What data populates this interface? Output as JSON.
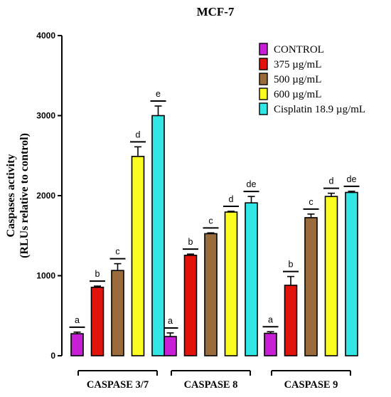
{
  "chart_data": {
    "type": "bar",
    "title": "MCF-7",
    "ylabel_line1": "Caspases activity",
    "ylabel_line2": "(RLUs relative to control)",
    "xlabel": "",
    "ylim": [
      0,
      4000
    ],
    "yticks": [
      0,
      1000,
      2000,
      3000,
      4000
    ],
    "grid": false,
    "legend_position": "top-right",
    "categories": [
      "CASPASE 3/7",
      "CASPASE 8",
      "CASPASE 9"
    ],
    "series": [
      {
        "name": "CONTROL",
        "color": "#c71fd6",
        "values": [
          275,
          240,
          280
        ],
        "errors": [
          20,
          45,
          20
        ],
        "letters": [
          "a",
          "a",
          "a"
        ]
      },
      {
        "name": "375 µg/mL",
        "color": "#e1130b",
        "values": [
          855,
          1255,
          880
        ],
        "errors": [
          15,
          15,
          110
        ],
        "letters": [
          "b",
          "b",
          "b"
        ]
      },
      {
        "name": "500 µg/mL",
        "color": "#9a6b3b",
        "values": [
          1065,
          1525,
          1725
        ],
        "errors": [
          85,
          10,
          45
        ],
        "letters": [
          "c",
          "c",
          "c"
        ]
      },
      {
        "name": "600 µg/mL",
        "color": "#fbfc20",
        "values": [
          2490,
          1795,
          1990
        ],
        "errors": [
          120,
          10,
          40
        ],
        "letters": [
          "d",
          "d",
          "d"
        ]
      },
      {
        "name": "Cisplatin 18.9 µg/mL",
        "color": "#33e6e6",
        "values": [
          3000,
          1910,
          2040
        ],
        "errors": [
          120,
          80,
          15
        ],
        "letters": [
          "e",
          "de",
          "de"
        ]
      }
    ]
  }
}
